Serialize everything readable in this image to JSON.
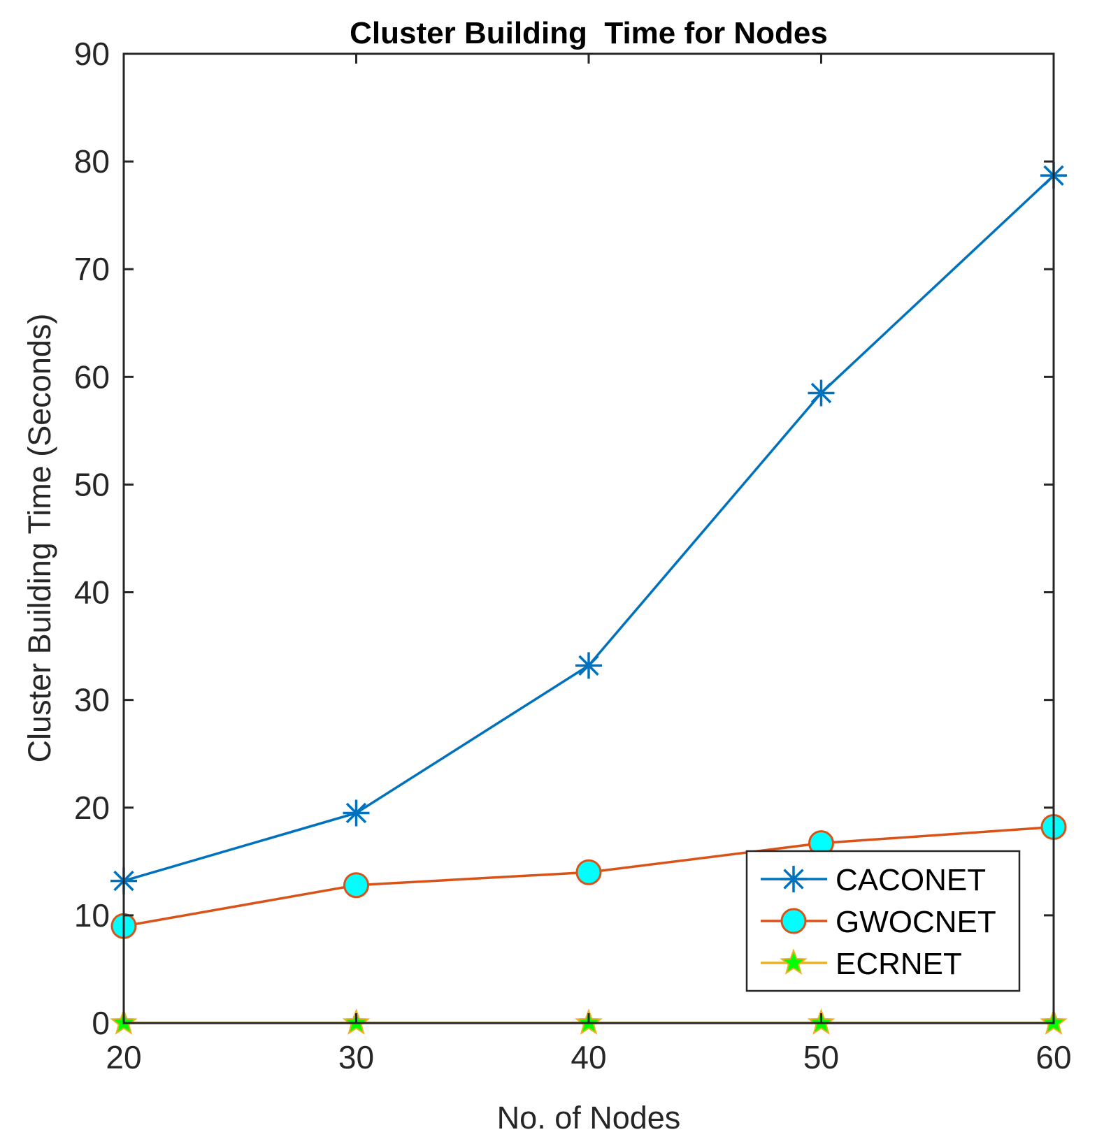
{
  "chart_data": {
    "type": "line",
    "title": "Cluster Building  Time for Nodes",
    "xlabel": "No. of Nodes",
    "ylabel": "Cluster Building Time (Seconds)",
    "x": [
      20,
      30,
      40,
      50,
      60
    ],
    "xlim": [
      20,
      60
    ],
    "ylim": [
      0,
      90
    ],
    "xticks": [
      "20",
      "30",
      "40",
      "50",
      "60"
    ],
    "yticks": [
      "0",
      "10",
      "20",
      "30",
      "40",
      "50",
      "60",
      "70",
      "80",
      "90"
    ],
    "grid": false,
    "legend_position": "bottom-right",
    "series": [
      {
        "name": "CACONET",
        "values": [
          13.2,
          19.5,
          33.2,
          58.5,
          78.7
        ],
        "color": "#0072bd",
        "marker": "asterisk"
      },
      {
        "name": "GWOCNET",
        "values": [
          9.0,
          12.8,
          14.0,
          16.7,
          18.2
        ],
        "color": "#d95319",
        "marker": "circle",
        "marker_fill": "#00ffff"
      },
      {
        "name": "ECRNET",
        "values": [
          0,
          0,
          0,
          0,
          0
        ],
        "color": "#edb120",
        "marker": "star",
        "marker_fill": "#00ff00"
      }
    ]
  }
}
